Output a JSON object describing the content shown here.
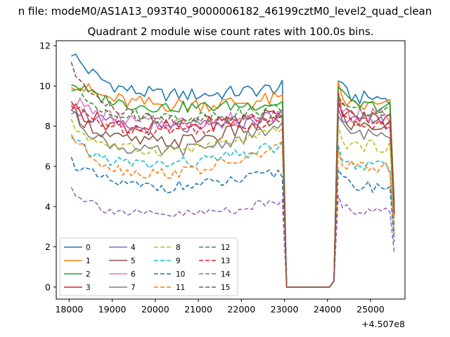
{
  "figure": {
    "suptitle": "n file: modeM0/AS1A13_093T40_9000006182_46199cztM0_level2_quad_clean",
    "x_offset_label": "+4.507e8"
  },
  "chart_data": {
    "type": "line",
    "title": "Quadrant 2 module wise count rates with 100.0s bins.",
    "xlabel": "",
    "ylabel": "",
    "x_offset": 450700000,
    "xlim": [
      17700,
      25800
    ],
    "ylim": [
      -0.6,
      12.25
    ],
    "xticks": [
      18000,
      19000,
      20000,
      21000,
      22000,
      23000,
      24000,
      25000
    ],
    "yticks": [
      0,
      2,
      4,
      6,
      8,
      10,
      12
    ],
    "grid": false,
    "legend": {
      "position": "lower-left",
      "columns": 4
    },
    "x_segments": [
      {
        "start": 18050,
        "end": 22950,
        "step": 100
      },
      {
        "start": 23050,
        "end": 24050,
        "step": 100
      },
      {
        "start": 24150,
        "end": 25550,
        "step": 100
      }
    ],
    "series": [
      {
        "name": "0",
        "color": "#1f77b4",
        "dash": "solid",
        "base": 9.3,
        "start": 11.7,
        "end": 10.0,
        "noise": 0.35,
        "end2": 9.4,
        "bump": 1.0
      },
      {
        "name": "1",
        "color": "#ff7f0e",
        "dash": "solid",
        "base": 8.9,
        "start": 10.3,
        "end": 9.4,
        "noise": 0.4,
        "end2": 9.0,
        "bump": 0.9
      },
      {
        "name": "2",
        "color": "#2ca02c",
        "dash": "solid",
        "base": 8.8,
        "start": 10.2,
        "end": 9.2,
        "noise": 0.3,
        "end2": 9.0,
        "bump": 1.2
      },
      {
        "name": "3",
        "color": "#d62728",
        "dash": "solid",
        "base": 7.7,
        "start": 9.0,
        "end": 8.8,
        "noise": 0.4,
        "end2": 8.4,
        "bump": 1.0
      },
      {
        "name": "4",
        "color": "#9467bd",
        "dash": "solid",
        "base": 7.6,
        "start": 9.1,
        "end": 8.7,
        "noise": 0.35,
        "end2": 8.2,
        "bump": 0.9
      },
      {
        "name": "5",
        "color": "#8c564b",
        "dash": "solid",
        "base": 6.8,
        "start": 8.9,
        "end": 8.6,
        "noise": 0.35,
        "end2": 8.0,
        "bump": 1.0
      },
      {
        "name": "6",
        "color": "#e377c2",
        "dash": "solid",
        "base": 7.9,
        "start": 9.4,
        "end": 8.8,
        "noise": 0.4,
        "end2": 8.5,
        "bump": 0.9
      },
      {
        "name": "7",
        "color": "#7f7f7f",
        "dash": "solid",
        "base": 6.3,
        "start": 8.7,
        "end": 8.2,
        "noise": 0.3,
        "end2": 7.6,
        "bump": 0.8
      },
      {
        "name": "8",
        "color": "#bcbd22",
        "dash": "dashed",
        "base": 6.5,
        "start": 8.1,
        "end": 7.9,
        "noise": 0.3,
        "end2": 7.0,
        "bump": 0.8
      },
      {
        "name": "9",
        "color": "#17becf",
        "dash": "dashed",
        "base": 5.8,
        "start": 7.3,
        "end": 7.2,
        "noise": 0.3,
        "end2": 6.0,
        "bump": 0.8
      },
      {
        "name": "10",
        "color": "#1f77b4",
        "dash": "dashed",
        "base": 4.7,
        "start": 6.3,
        "end": 5.8,
        "noise": 0.3,
        "end2": 5.0,
        "bump": 0.8
      },
      {
        "name": "11",
        "color": "#ff7f0e",
        "dash": "dashed",
        "base": 5.2,
        "start": 7.6,
        "end": 7.2,
        "noise": 0.3,
        "end2": 5.9,
        "bump": 0.8
      },
      {
        "name": "12",
        "color": "#2ca02c",
        "dash": "dashed",
        "base": 8.2,
        "start": 9.9,
        "end": 9.0,
        "noise": 0.3,
        "end2": 8.7,
        "bump": 1.0
      },
      {
        "name": "13",
        "color": "#d62728",
        "dash": "dashed",
        "base": 7.6,
        "start": 9.0,
        "end": 8.4,
        "noise": 0.3,
        "end2": 8.1,
        "bump": 0.9
      },
      {
        "name": "14",
        "color": "#9467bd",
        "dash": "dashed",
        "base": 3.3,
        "start": 4.9,
        "end": 4.4,
        "noise": 0.25,
        "end2": 3.8,
        "bump": 0.6
      },
      {
        "name": "15",
        "color": "#8c564b",
        "dash": "dashed",
        "base": 8.0,
        "start": 10.9,
        "end": 8.7,
        "noise": 0.3,
        "end2": 8.4,
        "bump": 1.1
      }
    ]
  }
}
